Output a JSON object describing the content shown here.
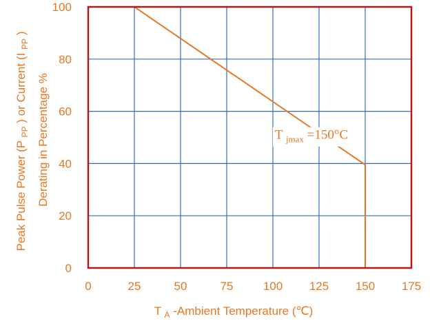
{
  "chart_data": {
    "type": "line",
    "xlabel": {
      "main": "T",
      "sub": "A",
      "rest": "-Ambient Temperature (℃)"
    },
    "ylabel": {
      "line1": {
        "pre": "Peak Pulse Power (P",
        "sub1": "PP",
        "mid": ") or Current (I",
        "sub2": "PP",
        "post": ")"
      },
      "line2": "Derating in Percentage %"
    },
    "xlim": [
      0,
      175
    ],
    "ylim": [
      0,
      100
    ],
    "xticks": [
      0,
      25,
      50,
      75,
      100,
      125,
      150,
      175
    ],
    "yticks": [
      0,
      20,
      40,
      60,
      80,
      100
    ],
    "grid": true,
    "series": [
      {
        "x": [
          0,
          25,
          150,
          150
        ],
        "y": [
          100,
          100,
          39.5,
          0
        ],
        "color": "#E87722"
      }
    ],
    "annotation": {
      "main": "T",
      "sub": "jmax",
      "rest": "=150°C",
      "x": 119,
      "y": 51
    },
    "colors": {
      "line": "#E87722",
      "text": "#E87722",
      "grid": "#2E6BC7",
      "frame": "#B21A1A",
      "annot_bg": "#ffffff"
    }
  }
}
